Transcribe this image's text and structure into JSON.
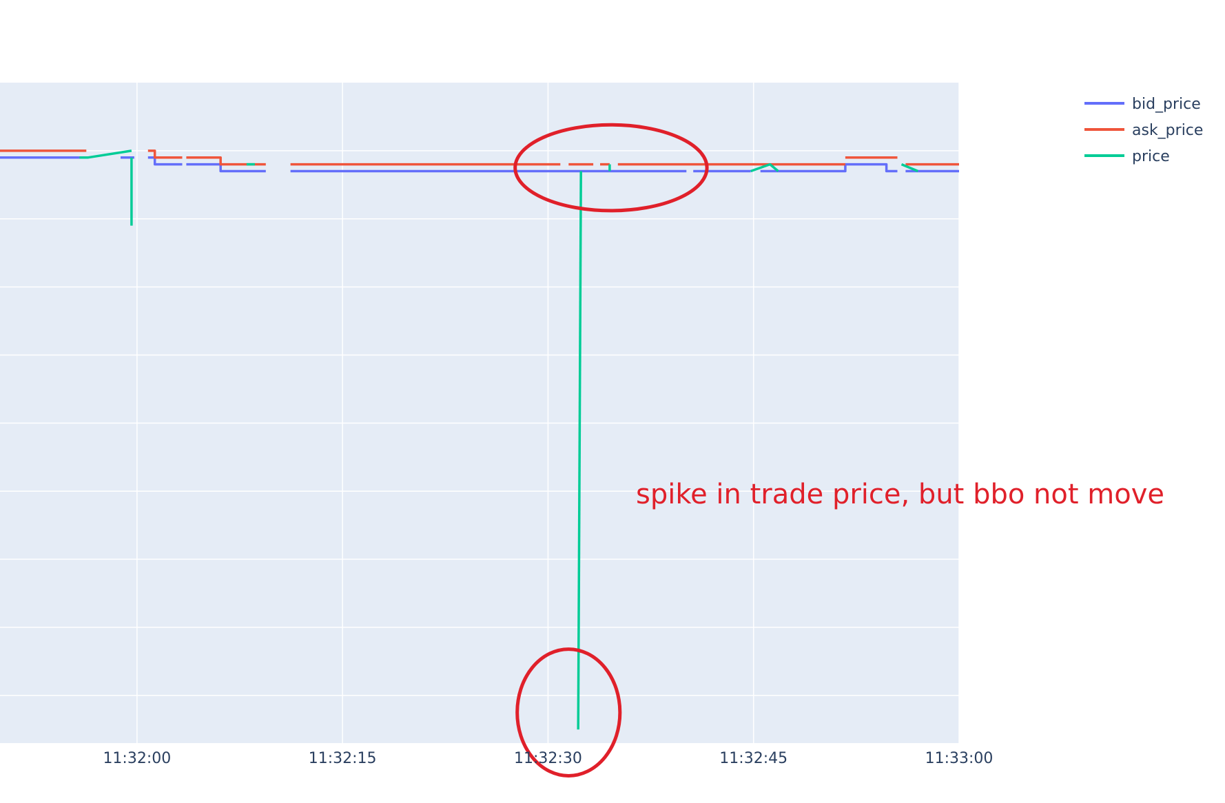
{
  "chart_data": {
    "type": "line",
    "x_unit": "time (HH:MM:SS)",
    "x_range": [
      "11:31:50",
      "11:33:00"
    ],
    "y_range": [
      0,
      9.7
    ],
    "x_ticks": [
      "11:32:00",
      "11:32:15",
      "11:32:30",
      "11:32:45",
      "11:33:00"
    ],
    "y_gridlines": [
      0.7,
      1.7,
      2.7,
      3.7,
      4.7,
      5.7,
      6.7,
      7.7,
      8.7
    ],
    "y_tick_labels_visible": false,
    "grid": true,
    "legend_position": "top-right",
    "colors": {
      "plot_bg": "#e5ecf6",
      "grid": "#ffffff",
      "bid_price": "#636efa",
      "ask_price": "#ef553b",
      "price": "#00cc96",
      "annotation": "#e0202a"
    },
    "series": [
      {
        "name": "bid_price",
        "segments": [
          [
            [
              "11:31:50",
              8.6
            ],
            [
              "11:31:56.3",
              8.6
            ]
          ],
          [
            [
              "11:31:58.8",
              8.6
            ],
            [
              "11:31:59.8",
              8.6
            ]
          ],
          [
            [
              "11:32:00.8",
              8.6
            ],
            [
              "11:32:01.3",
              8.6
            ],
            [
              "11:32:01.3",
              8.5
            ],
            [
              "11:32:03.3",
              8.5
            ]
          ],
          [
            [
              "11:32:03.6",
              8.5
            ],
            [
              "11:32:06.1",
              8.5
            ],
            [
              "11:32:06.1",
              8.4
            ],
            [
              "11:32:09.4",
              8.4
            ]
          ],
          [
            [
              "11:32:11.2",
              8.4
            ],
            [
              "11:32:40.1",
              8.4
            ]
          ],
          [
            [
              "11:32:40.6",
              8.4
            ],
            [
              "11:32:44.8",
              8.4
            ]
          ],
          [
            [
              "11:32:45.5",
              8.4
            ],
            [
              "11:32:51.7",
              8.4
            ],
            [
              "11:32:51.7",
              8.5
            ],
            [
              "11:32:54.7",
              8.5
            ],
            [
              "11:32:54.7",
              8.4
            ],
            [
              "11:32:55.5",
              8.4
            ]
          ],
          [
            [
              "11:32:56.1",
              8.4
            ],
            [
              "11:33:00",
              8.4
            ]
          ]
        ]
      },
      {
        "name": "ask_price",
        "segments": [
          [
            [
              "11:31:50",
              8.7
            ],
            [
              "11:31:56.3",
              8.7
            ]
          ],
          [
            [
              "11:32:00.8",
              8.7
            ],
            [
              "11:32:01.3",
              8.7
            ],
            [
              "11:32:01.3",
              8.6
            ],
            [
              "11:32:03.3",
              8.6
            ]
          ],
          [
            [
              "11:32:03.6",
              8.6
            ],
            [
              "11:32:06.1",
              8.6
            ],
            [
              "11:32:06.1",
              8.5
            ],
            [
              "11:32:09.4",
              8.5
            ]
          ],
          [
            [
              "11:32:11.2",
              8.5
            ],
            [
              "11:32:30.9",
              8.5
            ]
          ],
          [
            [
              "11:32:31.5",
              8.5
            ],
            [
              "11:32:33.3",
              8.5
            ]
          ],
          [
            [
              "11:32:33.8",
              8.5
            ],
            [
              "11:32:34.5",
              8.5
            ]
          ],
          [
            [
              "11:32:35.1",
              8.5
            ],
            [
              "11:32:51.7",
              8.5
            ]
          ],
          [
            [
              "11:32:51.7",
              8.6
            ],
            [
              "11:32:55.5",
              8.6
            ]
          ],
          [
            [
              "11:32:56.1",
              8.5
            ],
            [
              "11:33:00",
              8.5
            ]
          ]
        ]
      },
      {
        "name": "price",
        "segments": [
          [
            [
              "11:31:55.8",
              8.6
            ],
            [
              "11:31:56.4",
              8.6
            ],
            [
              "11:31:59.6",
              8.7
            ]
          ],
          [
            [
              "11:31:59.6",
              8.6
            ],
            [
              "11:31:59.6",
              7.6
            ]
          ],
          [
            [
              "11:32:08.0",
              8.5
            ],
            [
              "11:32:08.6",
              8.5
            ]
          ],
          [
            [
              "11:32:32.2",
              0.2
            ],
            [
              "11:32:32.4",
              8.4
            ]
          ],
          [
            [
              "11:32:34.5",
              8.5
            ],
            [
              "11:32:34.5",
              8.4
            ]
          ],
          [
            [
              "11:32:44.8",
              8.4
            ],
            [
              "11:32:46.2",
              8.5
            ],
            [
              "11:32:46.8",
              8.4
            ]
          ],
          [
            [
              "11:32:55.8",
              8.5
            ],
            [
              "11:32:57.0",
              8.4
            ]
          ]
        ]
      }
    ],
    "annotations": [
      {
        "text": "spike in trade price, but bbo not move",
        "color": "#e0202a"
      }
    ],
    "highlights": [
      {
        "shape": "ellipse",
        "target": "bbo around spike",
        "center": [
          "11:32:34.6",
          8.45
        ],
        "radius_seconds": 7.0,
        "radius_y": 0.63
      },
      {
        "shape": "ellipse",
        "target": "trade price low point",
        "center": [
          "11:32:31.5",
          0.45
        ],
        "radius_seconds": 3.75,
        "radius_y": 0.93
      }
    ]
  }
}
